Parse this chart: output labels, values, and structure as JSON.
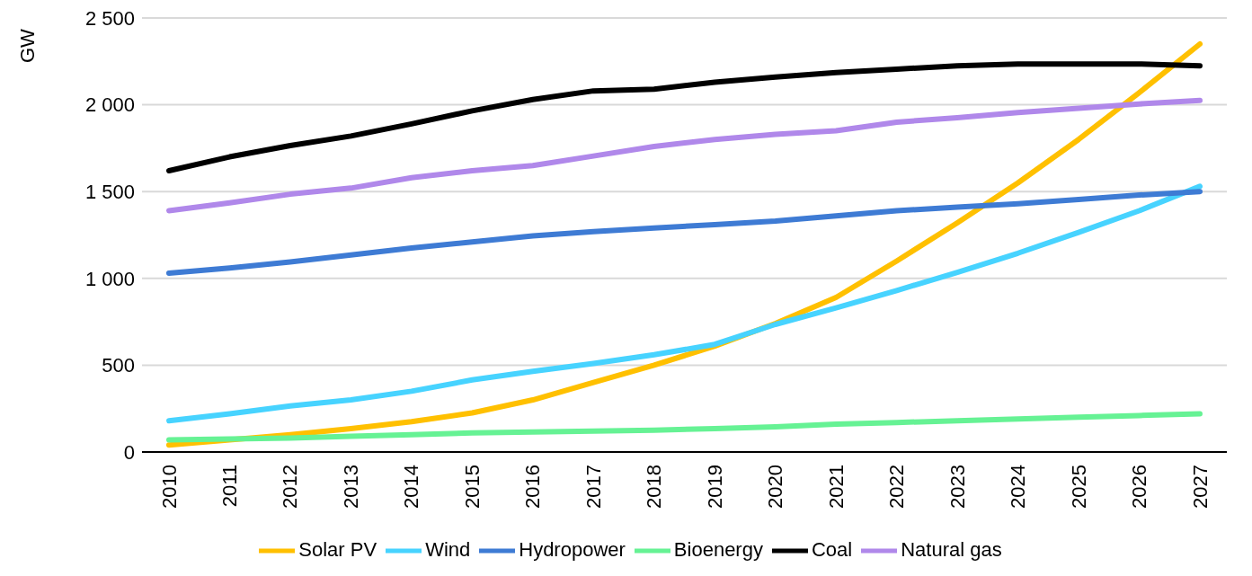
{
  "chart_data": {
    "type": "line",
    "ylabel": "GW",
    "categories": [
      "2010",
      "2011",
      "2012",
      "2013",
      "2014",
      "2015",
      "2016",
      "2017",
      "2018",
      "2019",
      "2020",
      "2021",
      "2022",
      "2023",
      "2024",
      "2025",
      "2026",
      "2027"
    ],
    "series": [
      {
        "name": "Solar PV",
        "color": "#ffc000",
        "values": [
          40,
          70,
          100,
          135,
          175,
          225,
          300,
          400,
          500,
          610,
          740,
          890,
          1100,
          1320,
          1550,
          1800,
          2070,
          2350
        ]
      },
      {
        "name": "Wind",
        "color": "#47d3ff",
        "values": [
          180,
          220,
          265,
          300,
          350,
          415,
          465,
          510,
          560,
          620,
          735,
          830,
          930,
          1035,
          1145,
          1265,
          1390,
          1530
        ]
      },
      {
        "name": "Hydropower",
        "color": "#3e7bd4",
        "values": [
          1030,
          1060,
          1095,
          1135,
          1175,
          1210,
          1245,
          1270,
          1290,
          1310,
          1330,
          1360,
          1390,
          1410,
          1430,
          1455,
          1480,
          1500
        ]
      },
      {
        "name": "Bioenergy",
        "color": "#66f294",
        "values": [
          70,
          75,
          80,
          90,
          100,
          110,
          115,
          120,
          125,
          135,
          145,
          160,
          170,
          180,
          190,
          200,
          210,
          220
        ]
      },
      {
        "name": "Coal",
        "color": "#000000",
        "values": [
          1620,
          1700,
          1765,
          1820,
          1890,
          1965,
          2030,
          2080,
          2090,
          2130,
          2160,
          2185,
          2205,
          2225,
          2235,
          2235,
          2235,
          2225
        ]
      },
      {
        "name": "Natural gas",
        "color": "#b088ea",
        "values": [
          1390,
          1435,
          1485,
          1520,
          1580,
          1620,
          1650,
          1705,
          1760,
          1800,
          1830,
          1850,
          1900,
          1925,
          1955,
          1980,
          2005,
          2025
        ]
      }
    ],
    "ylim": [
      0,
      2500
    ],
    "yticks": [
      0,
      500,
      {
        "value": 1000,
        "label": "1 000"
      },
      {
        "value": 1500,
        "label": "1 500"
      },
      {
        "value": 2000,
        "label": "2 000"
      },
      {
        "value": 2500,
        "label": "2 500"
      }
    ],
    "grid": "y",
    "legend": "bottom",
    "marker": "none",
    "line_style": "solid"
  }
}
